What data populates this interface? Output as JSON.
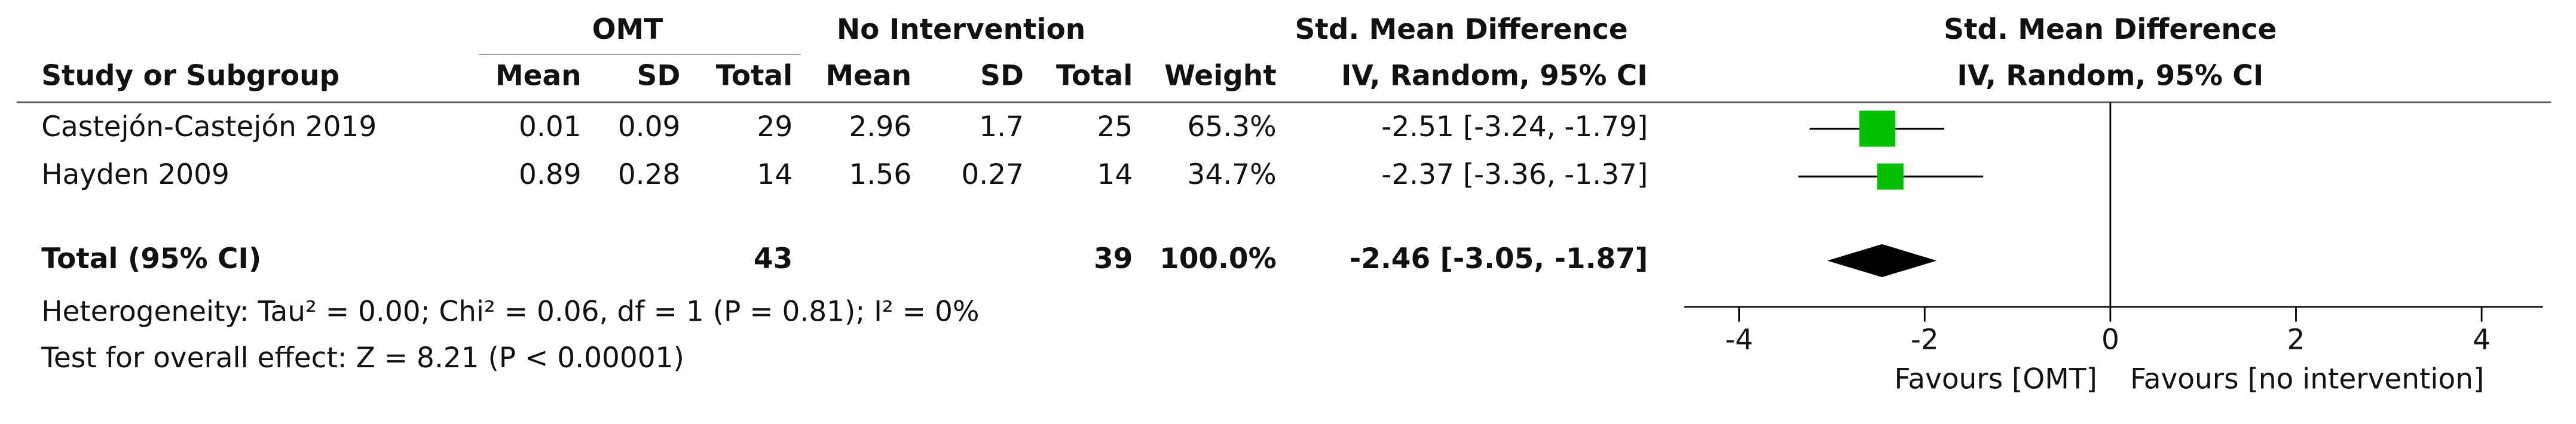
{
  "chart_data": {
    "type": "forest",
    "group_headers": [
      "OMT",
      "No Intervention",
      "Std. Mean Difference"
    ],
    "plot_header": [
      "Std. Mean Difference",
      "IV, Random, 95% CI"
    ],
    "columns": [
      "Study or Subgroup",
      "Mean",
      "SD",
      "Total",
      "Mean",
      "SD",
      "Total",
      "Weight",
      "IV, Random, 95% CI"
    ],
    "studies": [
      {
        "name": "Castejón-Castejón 2019",
        "omt_mean": 0.01,
        "omt_sd": 0.09,
        "omt_total": 29,
        "ctrl_mean": 2.96,
        "ctrl_sd": 1.7,
        "ctrl_total": 25,
        "weight": 65.3,
        "weight_label": "65.3%",
        "estimate": -2.51,
        "ci": [
          -3.24,
          -1.79
        ],
        "ci_label": "-2.51 [-3.24, -1.79]"
      },
      {
        "name": "Hayden 2009",
        "omt_mean": 0.89,
        "omt_sd": 0.28,
        "omt_total": 14,
        "ctrl_mean": 1.56,
        "ctrl_sd": 0.27,
        "ctrl_total": 14,
        "weight": 34.7,
        "weight_label": "34.7%",
        "estimate": -2.37,
        "ci": [
          -3.36,
          -1.37
        ],
        "ci_label": "-2.37 [-3.36, -1.37]"
      }
    ],
    "total": {
      "name": "Total (95% CI)",
      "omt_total": 43,
      "ctrl_total": 39,
      "weight": 100.0,
      "weight_label": "100.0%",
      "estimate": -2.46,
      "ci": [
        -3.05,
        -1.87
      ],
      "ci_label": "-2.46 [-3.05, -1.87]"
    },
    "heterogeneity": "Heterogeneity: Tau² = 0.00; Chi² = 0.06, df = 1 (P = 0.81); I² = 0%",
    "overall_effect": "Test for overall effect: Z = 8.21 (P < 0.00001)",
    "xlim": [
      -4.59,
      4.66
    ],
    "xticks": [
      -4,
      -2,
      0,
      2,
      4
    ],
    "x_labels": [
      "Favours [OMT]",
      "Favours [no intervention]"
    ],
    "study_color": "#00c000",
    "total_color": "#000000"
  }
}
